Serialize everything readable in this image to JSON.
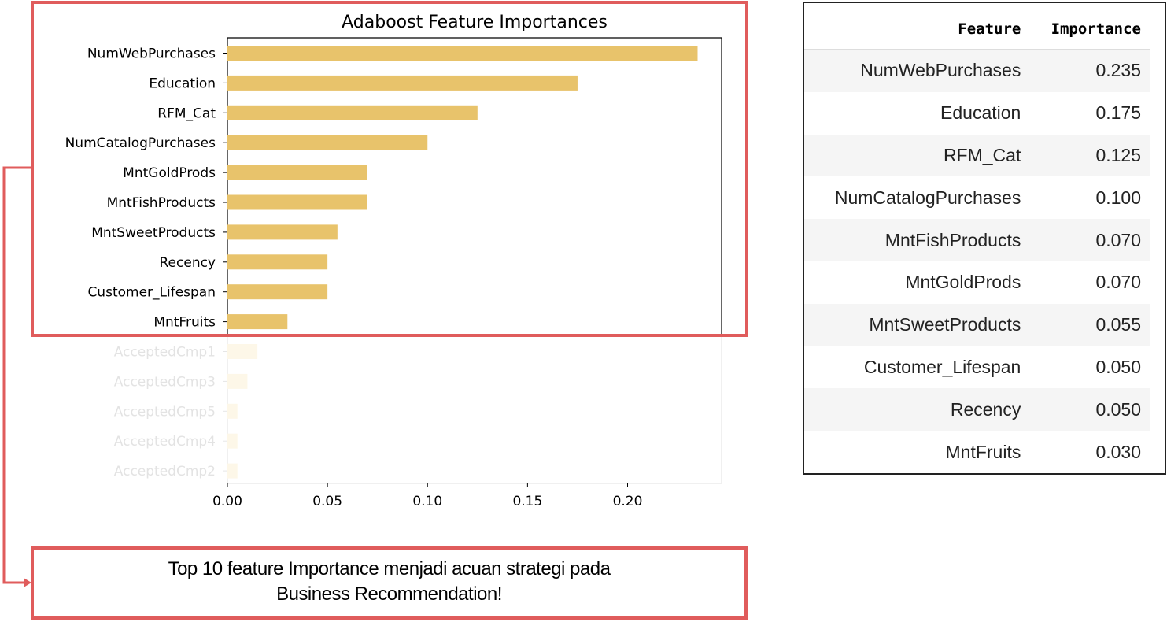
{
  "chart_data": {
    "type": "bar",
    "orientation": "horizontal",
    "title": "Adaboost Feature Importances",
    "categories": [
      "NumWebPurchases",
      "Education",
      "RFM_Cat",
      "NumCatalogPurchases",
      "MntGoldProds",
      "MntFishProducts",
      "MntSweetProducts",
      "Recency",
      "Customer_Lifespan",
      "MntFruits",
      "AcceptedCmp1",
      "AcceptedCmp3",
      "AcceptedCmp5",
      "AcceptedCmp4",
      "AcceptedCmp2"
    ],
    "values": [
      0.235,
      0.175,
      0.125,
      0.1,
      0.07,
      0.07,
      0.055,
      0.05,
      0.05,
      0.03,
      0.015,
      0.01,
      0.005,
      0.005,
      0.005
    ],
    "faded_from_index": 10,
    "xlim": [
      0,
      0.247
    ],
    "xticks": [
      "0.00",
      "0.05",
      "0.10",
      "0.15",
      "0.20"
    ],
    "xtick_values": [
      0.0,
      0.05,
      0.1,
      0.15,
      0.2
    ],
    "bar_color": "#e8c36b"
  },
  "table": {
    "headers": [
      "Feature",
      "Importance"
    ],
    "rows": [
      [
        "NumWebPurchases",
        "0.235"
      ],
      [
        "Education",
        "0.175"
      ],
      [
        "RFM_Cat",
        "0.125"
      ],
      [
        "NumCatalogPurchases",
        "0.100"
      ],
      [
        "MntFishProducts",
        "0.070"
      ],
      [
        "MntGoldProds",
        "0.070"
      ],
      [
        "MntSweetProducts",
        "0.055"
      ],
      [
        "Customer_Lifespan",
        "0.050"
      ],
      [
        "Recency",
        "0.050"
      ],
      [
        "MntFruits",
        "0.030"
      ]
    ]
  },
  "note": {
    "line1": "Top 10 feature Importance menjadi acuan strategi pada",
    "line2": "Business Recommendation!"
  },
  "colors": {
    "highlight": "#e05c5c",
    "bar": "#e8c36b"
  }
}
